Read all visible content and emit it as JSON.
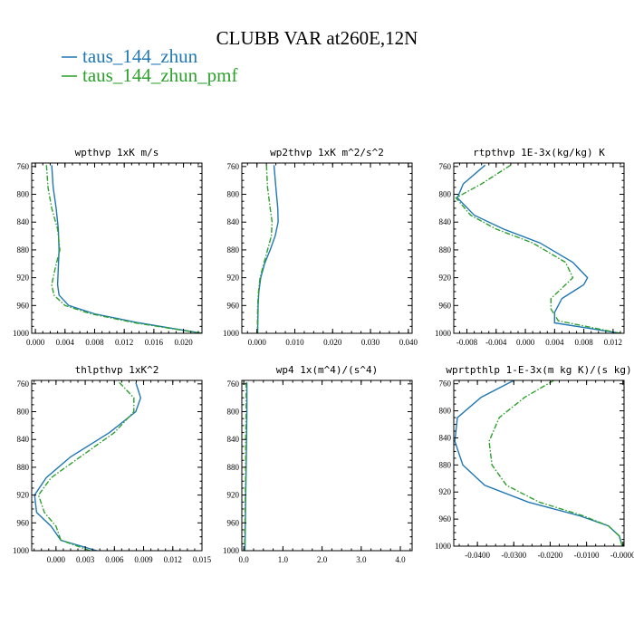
{
  "title": "CLUBB VAR at260E,12N",
  "legend": [
    {
      "label": "taus_144_zhun",
      "color": "#1f77b4",
      "dash": "solid"
    },
    {
      "label": "taus_144_zhun_pmf",
      "color": "#2ca02c",
      "dash": "dashdot"
    }
  ],
  "chart_data": [
    {
      "type": "line",
      "title": "wpthvp  1xK m/s",
      "xlim": [
        -0.0005,
        0.0225
      ],
      "xticks": [
        "0.000",
        "0.004",
        "0.008",
        "0.012",
        "0.016",
        "0.020"
      ],
      "xtick_values": [
        0.0,
        0.004,
        0.008,
        0.012,
        0.016,
        0.02
      ],
      "ylim": [
        1000,
        755
      ],
      "yticks": [
        "760",
        "800",
        "840",
        "880",
        "920",
        "960",
        "1000"
      ],
      "ytick_values": [
        760,
        800,
        840,
        880,
        920,
        960,
        1000
      ],
      "series": [
        {
          "name": "taus_144_zhun",
          "x": [
            0.0022,
            0.0024,
            0.0028,
            0.0031,
            0.0032,
            0.0031,
            0.003,
            0.0032,
            0.0045,
            0.008,
            0.014,
            0.0225
          ],
          "y": [
            758,
            790,
            820,
            850,
            880,
            905,
            930,
            945,
            960,
            972,
            985,
            1000
          ]
        },
        {
          "name": "taus_144_zhun_pmf",
          "x": [
            0.0015,
            0.0017,
            0.0022,
            0.003,
            0.0033,
            0.0027,
            0.0022,
            0.0025,
            0.004,
            0.0075,
            0.0135,
            0.0225
          ],
          "y": [
            758,
            790,
            820,
            850,
            880,
            905,
            930,
            945,
            960,
            972,
            985,
            1000
          ]
        }
      ]
    },
    {
      "type": "line",
      "title": "wp2thvp  1xK m^2/s^2",
      "xlim": [
        -0.004,
        0.041
      ],
      "xticks": [
        "0.000",
        "0.010",
        "0.020",
        "0.030",
        "0.040"
      ],
      "xtick_values": [
        0.0,
        0.01,
        0.02,
        0.03,
        0.04
      ],
      "ylim": [
        1000,
        755
      ],
      "yticks": [
        "760",
        "800",
        "840",
        "880",
        "920",
        "960",
        "1000"
      ],
      "ytick_values": [
        760,
        800,
        840,
        880,
        920,
        960,
        1000
      ],
      "series": [
        {
          "name": "taus_144_zhun",
          "x": [
            0.0045,
            0.005,
            0.0055,
            0.0056,
            0.0048,
            0.0035,
            0.002,
            0.001,
            0.0005,
            0.0003,
            0.0002
          ],
          "y": [
            758,
            790,
            820,
            840,
            860,
            880,
            900,
            920,
            940,
            960,
            1000
          ]
        },
        {
          "name": "taus_144_zhun_pmf",
          "x": [
            0.0025,
            0.0028,
            0.0035,
            0.004,
            0.0038,
            0.0028,
            0.0018,
            0.0008,
            0.0004,
            0.0002,
            0.0001
          ],
          "y": [
            758,
            790,
            820,
            840,
            860,
            880,
            900,
            920,
            940,
            960,
            1000
          ]
        }
      ]
    },
    {
      "type": "line",
      "title": "rtpthvp  1E-3x(kg/kg) K",
      "xlim": [
        -0.0098,
        0.0135
      ],
      "xticks": [
        "-0.008",
        "-0.004",
        "0.000",
        "0.004",
        "0.008",
        "0.012"
      ],
      "xtick_values": [
        -0.008,
        -0.004,
        0.0,
        0.004,
        0.008,
        0.012
      ],
      "ylim": [
        1000,
        755
      ],
      "yticks": [
        "760",
        "800",
        "840",
        "880",
        "920",
        "960",
        "1000"
      ],
      "ytick_values": [
        760,
        800,
        840,
        880,
        920,
        960,
        1000
      ],
      "series": [
        {
          "name": "taus_144_zhun",
          "x": [
            -0.0055,
            -0.0085,
            -0.0093,
            -0.007,
            -0.003,
            0.002,
            0.0065,
            0.0085,
            0.008,
            0.005,
            0.004,
            0.004,
            0.013
          ],
          "y": [
            758,
            785,
            805,
            830,
            850,
            870,
            898,
            920,
            930,
            950,
            970,
            985,
            1000
          ]
        },
        {
          "name": "taus_144_zhun_pmf",
          "x": [
            -0.002,
            -0.006,
            -0.0095,
            -0.0075,
            -0.004,
            0.001,
            0.0055,
            0.0065,
            0.0055,
            0.0035,
            0.0035,
            0.0045,
            0.013
          ],
          "y": [
            758,
            785,
            805,
            830,
            850,
            870,
            898,
            920,
            930,
            950,
            965,
            982,
            1000
          ]
        }
      ]
    },
    {
      "type": "line",
      "title": "thlpthvp  1xK^2",
      "xlim": [
        -0.0025,
        0.015
      ],
      "xticks": [
        "0.000",
        "0.003",
        "0.006",
        "0.009",
        "0.012",
        "0.015"
      ],
      "xtick_values": [
        0.0,
        0.003,
        0.006,
        0.009,
        0.012,
        0.015
      ],
      "ylim": [
        1000,
        755
      ],
      "yticks": [
        "760",
        "800",
        "840",
        "880",
        "920",
        "960",
        "1000"
      ],
      "ytick_values": [
        760,
        800,
        840,
        880,
        920,
        960,
        1000
      ],
      "series": [
        {
          "name": "taus_144_zhun",
          "x": [
            0.0082,
            0.0087,
            0.0082,
            0.0055,
            0.0015,
            -0.001,
            -0.0022,
            -0.002,
            -0.0005,
            0.0005,
            0.0042
          ],
          "y": [
            758,
            780,
            800,
            830,
            865,
            895,
            920,
            945,
            965,
            985,
            1000
          ]
        },
        {
          "name": "taus_144_zhun_pmf",
          "x": [
            0.0065,
            0.008,
            0.008,
            0.006,
            0.0025,
            -0.0005,
            -0.0018,
            -0.0012,
            0.0,
            0.0005,
            0.0035
          ],
          "y": [
            758,
            780,
            800,
            830,
            865,
            895,
            920,
            945,
            965,
            985,
            1000
          ]
        }
      ]
    },
    {
      "type": "line",
      "title": "wp4  1x(m^4)/(s^4)",
      "xlim": [
        -0.05,
        4.3
      ],
      "xticks": [
        "0.0",
        "1.0",
        "2.0",
        "3.0",
        "4.0"
      ],
      "xtick_values": [
        0.0,
        1.0,
        2.0,
        3.0,
        4.0
      ],
      "ylim": [
        1000,
        755
      ],
      "yticks": [
        "760",
        "800",
        "840",
        "880",
        "920",
        "960",
        "1000"
      ],
      "ytick_values": [
        760,
        800,
        840,
        880,
        920,
        960,
        1000
      ],
      "series": [
        {
          "name": "taus_144_zhun",
          "x": [
            0.08,
            0.08,
            0.07,
            0.06,
            0.05,
            0.04,
            0.03
          ],
          "y": [
            758,
            800,
            840,
            880,
            920,
            960,
            1000
          ]
        },
        {
          "name": "taus_144_zhun_pmf",
          "x": [
            0.06,
            0.06,
            0.05,
            0.05,
            0.04,
            0.03,
            0.02
          ],
          "y": [
            758,
            800,
            840,
            880,
            920,
            960,
            1000
          ]
        }
      ]
    },
    {
      "type": "line",
      "title": "wprtpthlp  1-E-3x(m kg K)/(s kg)",
      "xlim": [
        -0.0465,
        0.0003
      ],
      "xticks": [
        "-0.0400",
        "-0.0300",
        "-0.0200",
        "-0.0100",
        "-0.0000"
      ],
      "xtick_values": [
        -0.04,
        -0.03,
        -0.02,
        -0.01,
        0.0
      ],
      "ylim": [
        1000,
        755
      ],
      "yticks": [
        "760",
        "800",
        "840",
        "880",
        "920",
        "960",
        "1000"
      ],
      "ytick_values": [
        760,
        800,
        840,
        880,
        920,
        960,
        1000
      ],
      "series": [
        {
          "name": "taus_144_zhun",
          "x": [
            -0.03,
            -0.039,
            -0.0455,
            -0.0462,
            -0.044,
            -0.038,
            -0.026,
            -0.012,
            -0.004,
            -0.001,
            -0.0002
          ],
          "y": [
            755,
            780,
            810,
            845,
            880,
            910,
            935,
            955,
            970,
            985,
            1000
          ]
        },
        {
          "name": "taus_144_zhun_pmf",
          "x": [
            -0.019,
            -0.027,
            -0.034,
            -0.0368,
            -0.036,
            -0.032,
            -0.023,
            -0.011,
            -0.004,
            -0.001,
            -0.0002
          ],
          "y": [
            755,
            780,
            810,
            845,
            880,
            910,
            935,
            955,
            970,
            985,
            1000
          ]
        }
      ]
    }
  ]
}
